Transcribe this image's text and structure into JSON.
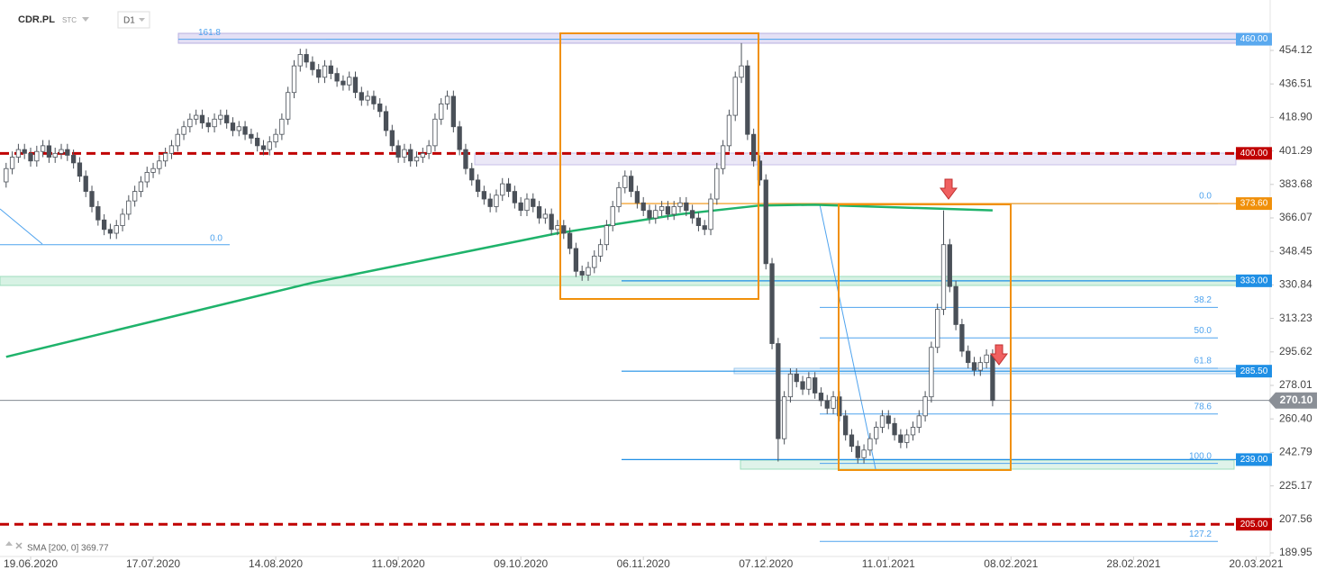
{
  "header": {
    "symbol": "CDR.PL",
    "market": "STC",
    "interval": "D1"
  },
  "chart_data": {
    "type": "candlestick",
    "xlim": [
      -1,
      206
    ],
    "ylim": [
      188.06,
      480.63
    ],
    "grid": false,
    "up_color": "#ffffff",
    "down_color": "#4a5058",
    "xticks": [
      {
        "value": 4,
        "label": "19.06.2020"
      },
      {
        "value": 24,
        "label": "17.07.2020"
      },
      {
        "value": 44,
        "label": "14.08.2020"
      },
      {
        "value": 64,
        "label": "11.09.2020"
      },
      {
        "value": 84,
        "label": "09.10.2020"
      },
      {
        "value": 104,
        "label": "06.11.2020"
      },
      {
        "value": 124,
        "label": "07.12.2020"
      },
      {
        "value": 144,
        "label": "11.01.2021"
      },
      {
        "value": 164,
        "label": "08.02.2021"
      },
      {
        "value": 184,
        "label": "28.02.2021"
      },
      {
        "value": 204,
        "label": "20.03.2021"
      }
    ],
    "yticks": [
      {
        "value": 454.12,
        "label": "454.12"
      },
      {
        "value": 436.51,
        "label": "436.51"
      },
      {
        "value": 418.9,
        "label": "418.90"
      },
      {
        "value": 401.29,
        "label": "401.29"
      },
      {
        "value": 383.68,
        "label": "383.68"
      },
      {
        "value": 366.07,
        "label": "366.07"
      },
      {
        "value": 348.45,
        "label": "348.45"
      },
      {
        "value": 330.84,
        "label": "330.84"
      },
      {
        "value": 313.23,
        "label": "313.23"
      },
      {
        "value": 295.62,
        "label": "295.62"
      },
      {
        "value": 278.01,
        "label": "278.01"
      },
      {
        "value": 260.4,
        "label": "260.40"
      },
      {
        "value": 242.79,
        "label": "242.79"
      },
      {
        "value": 225.17,
        "label": "225.17"
      },
      {
        "value": 207.56,
        "label": "207.56"
      },
      {
        "value": 189.95,
        "label": "189.95"
      }
    ],
    "open": [
      385,
      392,
      398,
      402,
      400,
      396,
      401,
      404,
      398,
      400,
      402,
      399,
      395,
      388,
      380,
      372,
      365,
      360,
      358,
      362,
      368,
      375,
      380,
      385,
      390,
      392,
      396,
      400,
      404,
      410,
      414,
      418,
      420,
      416,
      414,
      418,
      420,
      416,
      412,
      414,
      410,
      408,
      404,
      402,
      406,
      410,
      418,
      432,
      446,
      452,
      448,
      444,
      440,
      446,
      442,
      438,
      436,
      440,
      432,
      428,
      430,
      426,
      422,
      412,
      404,
      398,
      402,
      396,
      398,
      400,
      404,
      418,
      426,
      430,
      414,
      402,
      392,
      386,
      380,
      376,
      372,
      378,
      384,
      380,
      374,
      370,
      376,
      372,
      366,
      368,
      360,
      362,
      358,
      350,
      338,
      336,
      340,
      346,
      352,
      362,
      372,
      382,
      388,
      380,
      374,
      370,
      366,
      370,
      372,
      368,
      372,
      374,
      370,
      366,
      362,
      360,
      376,
      392,
      404,
      420,
      440,
      446,
      410,
      396,
      386,
      342,
      300,
      250,
      272,
      284,
      280,
      276,
      282,
      274,
      270,
      266,
      272,
      262,
      252,
      246,
      240,
      244,
      250,
      256,
      262,
      258,
      252,
      248,
      252,
      256,
      262,
      272,
      298,
      318,
      352,
      330,
      310,
      296,
      290,
      286,
      290,
      294
    ],
    "high": [
      395,
      401,
      405,
      405,
      403,
      404,
      407,
      407,
      403,
      405,
      405,
      402,
      398,
      391,
      383,
      375,
      368,
      363,
      365,
      371,
      378,
      383,
      388,
      393,
      395,
      399,
      403,
      407,
      413,
      417,
      421,
      423,
      423,
      419,
      421,
      423,
      423,
      419,
      417,
      417,
      413,
      411,
      407,
      409,
      413,
      421,
      435,
      449,
      455,
      455,
      451,
      447,
      449,
      449,
      445,
      441,
      443,
      443,
      435,
      433,
      433,
      429,
      425,
      415,
      407,
      405,
      405,
      401,
      403,
      407,
      421,
      429,
      433,
      433,
      417,
      405,
      395,
      389,
      383,
      379,
      381,
      387,
      387,
      383,
      377,
      379,
      379,
      375,
      371,
      371,
      365,
      365,
      361,
      353,
      341,
      343,
      349,
      355,
      365,
      375,
      385,
      391,
      391,
      383,
      377,
      373,
      373,
      375,
      375,
      375,
      377,
      377,
      373,
      369,
      365,
      379,
      395,
      407,
      423,
      443,
      458,
      449,
      413,
      399,
      389,
      345,
      303,
      275,
      287,
      287,
      283,
      285,
      285,
      277,
      273,
      275,
      275,
      265,
      255,
      249,
      247,
      253,
      259,
      265,
      265,
      261,
      255,
      255,
      259,
      265,
      275,
      301,
      321,
      370,
      355,
      333,
      313,
      299,
      293,
      293,
      297,
      297
    ],
    "low": [
      382,
      389,
      395,
      397,
      393,
      393,
      398,
      395,
      395,
      397,
      396,
      392,
      385,
      377,
      369,
      362,
      357,
      355,
      355,
      359,
      365,
      372,
      377,
      382,
      387,
      389,
      393,
      397,
      401,
      407,
      411,
      415,
      413,
      411,
      411,
      415,
      413,
      409,
      409,
      407,
      405,
      401,
      399,
      399,
      403,
      407,
      415,
      429,
      443,
      445,
      441,
      437,
      437,
      439,
      435,
      433,
      433,
      429,
      425,
      425,
      423,
      419,
      409,
      401,
      395,
      395,
      393,
      393,
      395,
      397,
      401,
      415,
      423,
      411,
      399,
      389,
      383,
      377,
      373,
      369,
      369,
      375,
      377,
      371,
      367,
      367,
      369,
      363,
      363,
      357,
      357,
      355,
      347,
      335,
      333,
      333,
      337,
      343,
      349,
      359,
      369,
      379,
      377,
      371,
      367,
      363,
      363,
      367,
      365,
      365,
      369,
      367,
      363,
      359,
      357,
      357,
      373,
      389,
      401,
      417,
      437,
      407,
      393,
      383,
      339,
      297,
      238,
      247,
      269,
      277,
      273,
      273,
      271,
      267,
      263,
      263,
      259,
      249,
      243,
      237,
      237,
      241,
      247,
      253,
      255,
      249,
      245,
      245,
      249,
      253,
      259,
      269,
      295,
      315,
      327,
      307,
      293,
      287,
      283,
      283,
      287,
      267
    ],
    "close": [
      392,
      398,
      402,
      400,
      396,
      401,
      404,
      398,
      400,
      402,
      399,
      395,
      388,
      380,
      372,
      365,
      360,
      358,
      362,
      368,
      375,
      380,
      385,
      390,
      392,
      396,
      400,
      404,
      410,
      414,
      418,
      420,
      416,
      414,
      418,
      420,
      416,
      412,
      414,
      410,
      408,
      404,
      402,
      406,
      410,
      418,
      432,
      446,
      452,
      448,
      444,
      440,
      446,
      442,
      438,
      436,
      440,
      432,
      428,
      430,
      426,
      422,
      412,
      404,
      398,
      402,
      396,
      398,
      400,
      404,
      418,
      426,
      430,
      414,
      402,
      392,
      386,
      380,
      376,
      372,
      378,
      384,
      380,
      374,
      370,
      376,
      372,
      366,
      368,
      360,
      362,
      358,
      350,
      338,
      336,
      340,
      346,
      352,
      362,
      372,
      382,
      388,
      380,
      374,
      370,
      366,
      370,
      372,
      368,
      372,
      374,
      370,
      366,
      362,
      360,
      376,
      392,
      404,
      420,
      440,
      446,
      410,
      396,
      386,
      342,
      300,
      250,
      272,
      284,
      280,
      276,
      282,
      274,
      270,
      266,
      272,
      262,
      252,
      246,
      240,
      244,
      250,
      256,
      262,
      258,
      252,
      248,
      252,
      256,
      262,
      272,
      298,
      318,
      352,
      330,
      310,
      296,
      290,
      286,
      290,
      294,
      270.1
    ],
    "last_price": {
      "value": 270.1,
      "label": "270.10",
      "color": "#8a8f96"
    },
    "sma": {
      "label": "SMA [200, 0] 369.77",
      "color": "#1fb36b",
      "x": [
        0,
        50,
        90,
        110,
        123,
        132,
        161
      ],
      "values": [
        293,
        332,
        358,
        368,
        372.6,
        373,
        370
      ]
    },
    "levels": [
      {
        "value": 460,
        "label": "460.00",
        "color": "#5aa9ef",
        "dashed": false
      },
      {
        "value": 400,
        "label": "400.00",
        "color": "#c00000",
        "dashed": true
      },
      {
        "value": 373.6,
        "label": "373.60",
        "color": "#f0900a",
        "dashed": false
      },
      {
        "value": 333,
        "label": "333.00",
        "color": "#1f8fe5",
        "dashed": false
      },
      {
        "value": 285.5,
        "label": "285.50",
        "color": "#1f8fe5",
        "dashed": false
      },
      {
        "value": 239,
        "label": "239.00",
        "color": "#1f8fe5",
        "dashed": false
      },
      {
        "value": 205,
        "label": "205.00",
        "color": "#c00000",
        "dashed": true
      }
    ],
    "fib": [
      {
        "label": "0.0",
        "value": 373.6
      },
      {
        "label": "38.2",
        "value": 319
      },
      {
        "label": "50.0",
        "value": 303
      },
      {
        "label": "61.8",
        "value": 287
      },
      {
        "label": "78.6",
        "value": 263
      },
      {
        "label": "100.0",
        "value": 237
      },
      {
        "label": "127.2",
        "value": 196
      }
    ],
    "fib_old": [
      {
        "label": "161.8",
        "value": 460
      },
      {
        "label": "0.0",
        "value": 352
      }
    ]
  }
}
